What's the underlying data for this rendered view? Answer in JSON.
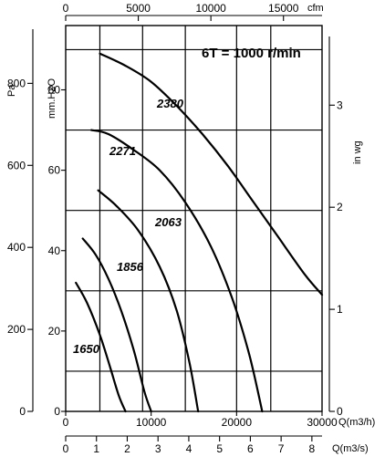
{
  "chart_data": {
    "type": "line",
    "title": "6T = 1000 r/min",
    "x_axes": {
      "primary": {
        "label": "Q(m3/h)",
        "lim": [
          0,
          30000
        ],
        "ticks": [
          0,
          10000,
          20000,
          30000
        ]
      },
      "secondary": {
        "label": "Q(m3/s)",
        "lim": [
          0,
          8.33
        ],
        "ticks": [
          0,
          1,
          2,
          3,
          4,
          5,
          6,
          7,
          8
        ]
      },
      "top": {
        "label": "cfm",
        "lim": [
          0,
          17657
        ],
        "ticks": [
          0,
          5000,
          10000,
          15000
        ]
      }
    },
    "y_axes": {
      "primary": {
        "label": "mm.H2O",
        "lim": [
          0,
          96
        ],
        "ticks": [
          0,
          20,
          40,
          60,
          80
        ]
      },
      "pa": {
        "label": "Pa",
        "lim": [
          0,
          941
        ],
        "ticks": [
          0,
          200,
          400,
          600,
          800
        ]
      },
      "inwg": {
        "label": "in wg",
        "lim": [
          0,
          3.78
        ],
        "ticks": [
          0,
          1,
          2,
          3
        ]
      }
    },
    "grid": {
      "vertical_flow_m3h": [
        4000,
        9000,
        14000,
        20000,
        24000
      ],
      "horizontal_mmH2O": [
        10,
        30,
        50,
        70,
        90
      ]
    },
    "series": [
      {
        "name": "1650",
        "x": [
          1200,
          2500,
          4000,
          5200,
          6200,
          7000
        ],
        "y": [
          32,
          27,
          19,
          11,
          4,
          0
        ]
      },
      {
        "name": "1856",
        "x": [
          2000,
          3500,
          5000,
          6500,
          8000,
          9200,
          10000
        ],
        "y": [
          43,
          39,
          33,
          25,
          15,
          5,
          0
        ]
      },
      {
        "name": "2063",
        "x": [
          3800,
          6000,
          8500,
          11000,
          13000,
          14500,
          15500
        ],
        "y": [
          55,
          51,
          45,
          36,
          25,
          12,
          0
        ]
      },
      {
        "name": "2271",
        "x": [
          3000,
          5000,
          8000,
          11000,
          14000,
          17000,
          19500,
          21500,
          23000
        ],
        "y": [
          70,
          69,
          65,
          60,
          52,
          41,
          28,
          14,
          0
        ]
      },
      {
        "name": "2380",
        "x": [
          4000,
          7000,
          10000,
          13000,
          16000,
          19000,
          22000,
          25000,
          28000,
          30000
        ],
        "y": [
          89,
          86,
          82,
          76,
          69,
          61,
          52,
          43,
          34,
          29
        ]
      }
    ],
    "labels": [
      "2380",
      "2271",
      "2063",
      "1856",
      "1650"
    ]
  }
}
